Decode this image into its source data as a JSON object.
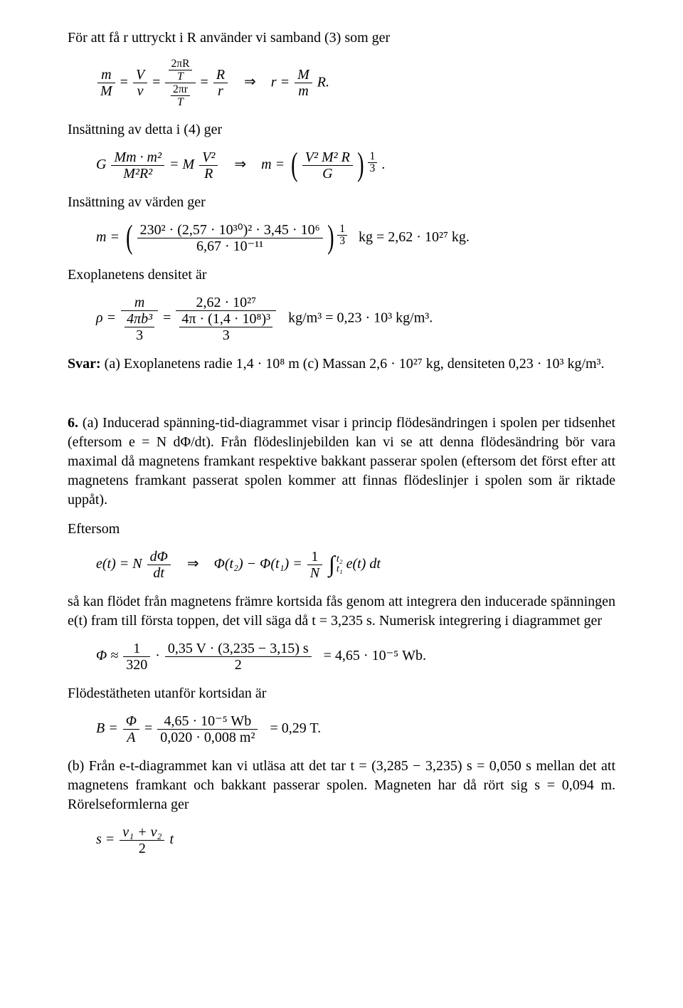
{
  "p1_intro": "För att få r uttryckt i R använder vi samband (3) som ger",
  "p2_intro": "Insättning av detta i (4) ger",
  "p3_intro": "Insättning av värden ger",
  "p4_intro": "Exoplanetens densitet är",
  "answer_label": "Svar:",
  "answer_text": " (a) Exoplanetens radie 1,4 · 10⁸ m (c) Massan 2,6 · 10²⁷ kg, densiteten 0,23 · 10³ kg/m³.",
  "q6_label": "6.",
  "q6_body": " (a) Inducerad spänning-tid-diagrammet visar i princip flödesändringen i spolen per tidsenhet (eftersom e = N dΦ/dt). Från flödeslinjebilden kan vi se att denna flödesändring bör vara maximal då magnetens framkant respektive bakkant passerar spolen (eftersom det först efter att magnetens framkant passerat spolen kommer att finnas flödeslinjer i spolen som är riktade uppåt).",
  "eftersom": "Eftersom",
  "p5_body": "så kan flödet från magnetens främre kortsida fås genom att integrera den inducerade spänningen e(t) fram till första toppen, det vill säga då t = 3,235 s. Numerisk integrering i diagrammet ger",
  "p6_body": "Flödestätheten utanför kortsidan är",
  "p7_body": "(b) Från e-t-diagrammet kan vi utläsa att det tar t = (3,285 − 3,235) s = 0,050 s mellan det att magnetens framkant och bakkant passerar spolen. Magneten har då rört sig s = 0,094 m. Rörelseformlerna ger",
  "eq1": {
    "lhs_top1": "m",
    "lhs_bot1": "M",
    "lhs_top2": "V",
    "lhs_bot2": "v",
    "small_top1": "2πR",
    "small_mid1": "T",
    "small_top2": "2πr",
    "small_mid2": "T",
    "lhs_top3": "R",
    "lhs_bot3": "r",
    "rhs_top": "M",
    "rhs_bot": "m",
    "rhs_tail": "R."
  },
  "eq2": {
    "G": "G",
    "num1": "Mm · m²",
    "den1": "M²R²",
    "eqM": "= M",
    "num2": "V²",
    "den2": "R",
    "meq": "m =",
    "inner_num": "V² M² R",
    "inner_den": "G",
    "exp_top": "1",
    "exp_bot": "3",
    "trail": "."
  },
  "eq3": {
    "inner_num": "230² · (2,57 · 10³⁰)² · 3,45 · 10⁶",
    "inner_den": "6,67 · 10⁻¹¹",
    "exp_top": "1",
    "exp_bot": "3",
    "result": "kg = 2,62 · 10²⁷ kg."
  },
  "eq4": {
    "rho": "ρ =",
    "num1": "m",
    "den1_top": "4πb³",
    "den1_bot": "3",
    "num2": "2,62 · 10²⁷",
    "den2_top": "4π · (1,4 · 10⁸)³",
    "den2_bot": "3",
    "result": "kg/m³ = 0,23 · 10³ kg/m³."
  },
  "eq5": {
    "et": "e(t) = N",
    "dphi": "dΦ",
    "dt": "dt",
    "phi_diff": "Φ(t₂) − Φ(t₁) =",
    "oneN_top": "1",
    "oneN_bot": "N",
    "lim_t2": "t₂",
    "lim_t1": "t₁",
    "integrand": "e(t) dt"
  },
  "eq6": {
    "phi_approx": "Φ ≈",
    "f1_top": "1",
    "f1_bot": "320",
    "dot": " · ",
    "f2_top": "0,35 V · (3,235 − 3,15) s",
    "f2_bot": "2",
    "result": "= 4,65 · 10⁻⁵ Wb."
  },
  "eq7": {
    "Beq": "B =",
    "num1": "Φ",
    "den1": "A",
    "num2": "4,65 · 10⁻⁵ Wb",
    "den2": "0,020 · 0,008 m²",
    "result": "= 0,29 T."
  },
  "eq8": {
    "seq": "s =",
    "num": "v₁ + v₂",
    "den": "2",
    "tail": "t"
  },
  "glyphs": {
    "implies": "⇒",
    "eq": "=",
    "r_eq": "r ="
  }
}
